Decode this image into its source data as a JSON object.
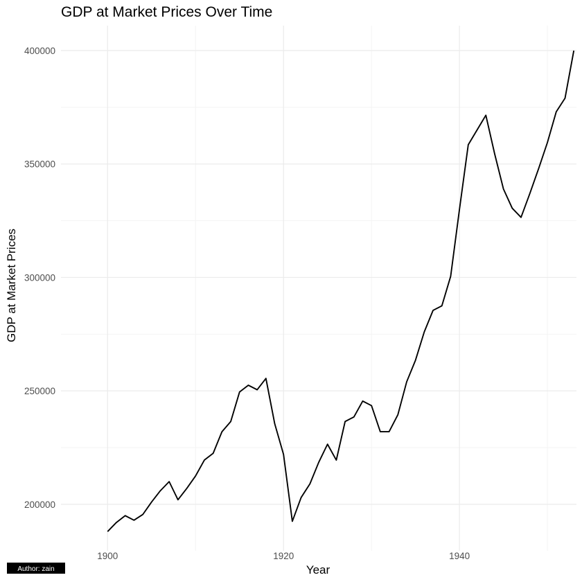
{
  "chart_data": {
    "type": "line",
    "title": "GDP at Market Prices Over Time",
    "xlabel": "Year",
    "ylabel": "GDP at Market Prices",
    "caption": "Author: zain",
    "xlim": [
      1894.7,
      1953.3
    ],
    "ylim": [
      179500,
      411000
    ],
    "x_ticks": [
      1900,
      1920,
      1940
    ],
    "y_ticks": [
      200000,
      250000,
      300000,
      350000,
      400000
    ],
    "grid": true,
    "series": [
      {
        "color": "#000000",
        "x": [
          1900,
          1901,
          1902,
          1903,
          1904,
          1905,
          1906,
          1907,
          1908,
          1909,
          1910,
          1911,
          1912,
          1913,
          1914,
          1915,
          1916,
          1917,
          1918,
          1919,
          1920,
          1921,
          1922,
          1923,
          1924,
          1925,
          1926,
          1927,
          1928,
          1929,
          1930,
          1931,
          1932,
          1933,
          1934,
          1935,
          1936,
          1937,
          1938,
          1939,
          1940,
          1941,
          1942,
          1943,
          1944,
          1945,
          1946,
          1947,
          1948,
          1949,
          1950,
          1951,
          1952,
          1953
        ],
        "y": [
          188000,
          192000,
          195000,
          193000,
          195500,
          201000,
          206000,
          210000,
          202000,
          207000,
          212500,
          219500,
          222500,
          232000,
          236500,
          249500,
          252500,
          250500,
          255500,
          235500,
          222000,
          192500,
          203000,
          209000,
          218500,
          226500,
          219500,
          236500,
          238500,
          245500,
          243500,
          232000,
          232000,
          239500,
          254000,
          263500,
          276000,
          285500,
          287500,
          300500,
          330000,
          358500,
          365000,
          371500,
          354500,
          339000,
          330500,
          326500,
          337000,
          348000,
          359500,
          373000,
          379000,
          400000
        ]
      }
    ]
  }
}
